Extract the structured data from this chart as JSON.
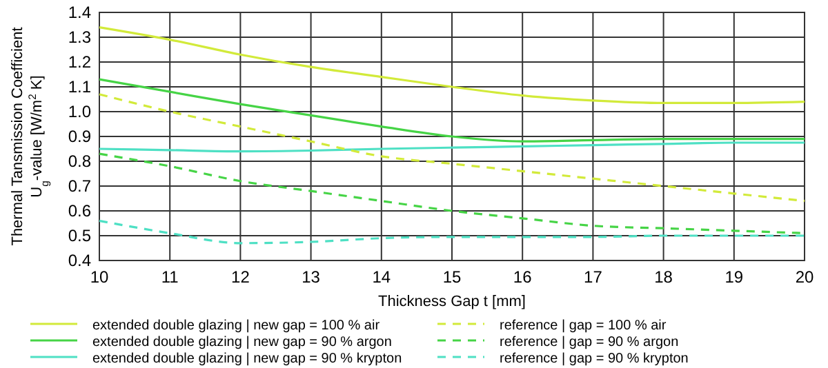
{
  "chart_data": {
    "type": "line",
    "xlabel": "Thickness Gap t [mm]",
    "ylabel": "Thermal Tansmission Coefficient U$_{g}$-value [W/m$^{2}$ K]",
    "x": [
      10,
      11,
      12,
      13,
      14,
      15,
      16,
      17,
      18,
      19,
      20
    ],
    "series": [
      {
        "name": "extended double glazing | new gap = 100 % air",
        "color": "#d2ea3a",
        "line_style": "solid",
        "values": [
          1.34,
          1.29,
          1.23,
          1.18,
          1.14,
          1.1,
          1.065,
          1.045,
          1.035,
          1.035,
          1.04
        ]
      },
      {
        "name": "extended double glazing | new gap = 90 % argon",
        "color": "#46d446",
        "line_style": "solid",
        "values": [
          1.13,
          1.08,
          1.03,
          0.985,
          0.94,
          0.9,
          0.88,
          0.885,
          0.89,
          0.89,
          0.89
        ]
      },
      {
        "name": "extended double glazing | new gap = 90 % krypton",
        "color": "#4ee0c4",
        "line_style": "solid",
        "values": [
          0.85,
          0.845,
          0.84,
          0.843,
          0.85,
          0.855,
          0.86,
          0.865,
          0.87,
          0.875,
          0.875
        ]
      },
      {
        "name": "reference | gap = 100 % air",
        "color": "#d2ea3a",
        "line_style": "dashed",
        "values": [
          1.07,
          1.0,
          0.94,
          0.88,
          0.82,
          0.79,
          0.76,
          0.73,
          0.7,
          0.67,
          0.64
        ]
      },
      {
        "name": "reference | gap = 90 % argon",
        "color": "#46d446",
        "line_style": "dashed",
        "values": [
          0.83,
          0.78,
          0.72,
          0.68,
          0.64,
          0.6,
          0.57,
          0.54,
          0.53,
          0.52,
          0.51
        ]
      },
      {
        "name": "reference | gap = 90 % krypton",
        "color": "#4ee0c4",
        "line_style": "dashed",
        "values": [
          0.56,
          0.51,
          0.47,
          0.475,
          0.49,
          0.495,
          0.495,
          0.495,
          0.5,
          0.5,
          0.5
        ]
      }
    ],
    "xlim": [
      10,
      20
    ],
    "xticks": [
      10,
      11,
      12,
      13,
      14,
      15,
      16,
      17,
      18,
      19,
      20
    ],
    "ylim": [
      0.4,
      1.4
    ],
    "yticks": [
      {
        "value": 0.4,
        "label": "0.4"
      },
      {
        "value": 0.5,
        "label": "0.5"
      },
      {
        "value": 0.6,
        "label": "0.6"
      },
      {
        "value": 0.7,
        "label": "0.7"
      },
      {
        "value": 0.8,
        "label": "0.8"
      },
      {
        "value": 0.9,
        "label": "0.9"
      },
      {
        "value": 1.0,
        "label": "1.0"
      },
      {
        "value": 1.1,
        "label": "1.1"
      },
      {
        "value": 1.2,
        "label": "1.2"
      },
      {
        "value": 1.3,
        "label": "1.3"
      },
      {
        "value": 1.4,
        "label": "1.4"
      }
    ],
    "grid": true,
    "legend": "bottom",
    "marker": "none"
  }
}
